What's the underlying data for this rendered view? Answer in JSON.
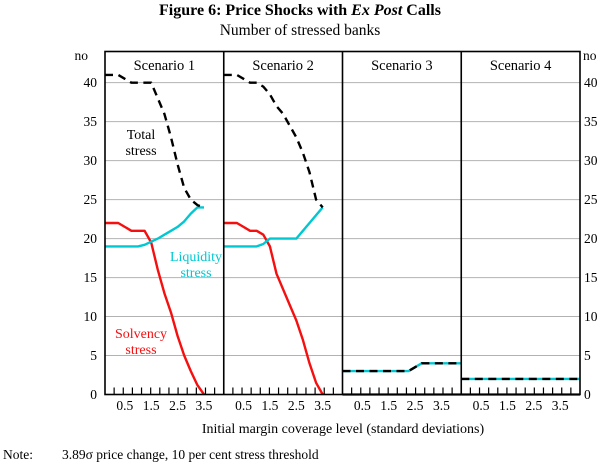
{
  "figure": {
    "title_prefix": "Figure 6: Price Shocks with ",
    "title_italic": "Ex Post",
    "title_suffix": " Calls",
    "subtitle": "Number of stressed banks",
    "axis_unit": "no",
    "xlabel": "Initial margin coverage level (standard deviations)",
    "note_label": "Note:",
    "note_text": "3.89σ price change, 10 per cent stress threshold"
  },
  "colors": {
    "total": "#000000",
    "liquidity": "#00c8d2",
    "solvency": "#f50f0f",
    "grid": "#b2b2b2",
    "frame": "#000000"
  },
  "chart_data": {
    "type": "line",
    "title": "Figure 6: Price Shocks with Ex Post Calls",
    "subtitle": "Number of stressed banks",
    "ylabel": "no",
    "xlabel": "Initial margin coverage level (standard deviations)",
    "note": "3.89σ price change, 10 per cent stress threshold",
    "x": [
      0.25,
      0.5,
      0.75,
      1.0,
      1.25,
      1.5,
      1.75,
      2.0,
      2.25,
      2.5,
      2.75,
      3.0,
      3.25,
      3.5
    ],
    "xlim": [
      -0.25,
      4.25
    ],
    "ylim": [
      0,
      44
    ],
    "yticks": [
      0,
      5,
      10,
      15,
      20,
      25,
      30,
      35,
      40
    ],
    "xtick_labels": [
      "0.5",
      "1.5",
      "2.5",
      "3.5"
    ],
    "xtick_values": [
      0.5,
      1.5,
      2.5,
      3.5
    ],
    "grid": "horizontal-only",
    "legend_position": "in-panel-text-labels",
    "series_text": {
      "total": [
        "Total",
        "stress"
      ],
      "liquidity": [
        "Liquidity",
        "stress"
      ],
      "solvency": [
        "Solvency",
        "stress"
      ]
    },
    "series_names": {
      "total": "Total stress",
      "liquidity": "Liquidity stress",
      "solvency": "Solvency stress"
    },
    "panels": [
      {
        "label": "Scenario 1",
        "extend_left": true,
        "extend_right": false,
        "series": {
          "total": [
            41,
            40.5,
            40,
            40,
            40,
            40,
            38,
            36,
            33,
            29.5,
            26.5,
            25,
            24.3,
            24
          ],
          "liquidity": [
            19,
            19,
            19,
            19,
            19.2,
            19.6,
            20,
            20.5,
            21,
            21.5,
            22.2,
            23.2,
            24,
            24
          ],
          "solvency": [
            22,
            21.5,
            21,
            21,
            21,
            19.5,
            16,
            13,
            10.5,
            7.5,
            5,
            3,
            1.2,
            0
          ]
        }
      },
      {
        "label": "Scenario 2",
        "extend_left": true,
        "extend_right": false,
        "series": {
          "total": [
            41,
            40.5,
            40,
            40,
            39.5,
            38.5,
            37,
            36,
            34.5,
            33,
            31,
            28.5,
            25,
            24
          ],
          "liquidity": [
            19,
            19,
            19,
            19,
            19.3,
            20,
            20,
            20,
            20,
            20,
            21,
            22,
            23,
            24
          ],
          "solvency": [
            22,
            21.5,
            21,
            21,
            20.5,
            19,
            15.5,
            13.5,
            11.5,
            9.5,
            7,
            4,
            1.5,
            0
          ]
        }
      },
      {
        "label": "Scenario 3",
        "extend_left": true,
        "extend_right": true,
        "series": {
          "total": [
            3,
            3,
            3,
            3,
            3,
            3,
            3,
            3,
            3,
            3.5,
            4,
            4,
            4,
            4
          ],
          "liquidity": [
            3,
            3,
            3,
            3,
            3,
            3,
            3,
            3,
            3,
            3.5,
            4,
            4,
            4,
            4
          ],
          "solvency": [
            0,
            0,
            0,
            0,
            0,
            0,
            0,
            0,
            0,
            0,
            0,
            0,
            0,
            0
          ]
        }
      },
      {
        "label": "Scenario 4",
        "extend_left": true,
        "extend_right": true,
        "series": {
          "total": [
            2,
            2,
            2,
            2,
            2,
            2,
            2,
            2,
            2,
            2,
            2,
            2,
            2,
            2
          ],
          "liquidity": [
            2,
            2,
            2,
            2,
            2,
            2,
            2,
            2,
            2,
            2,
            2,
            2,
            2,
            2
          ],
          "solvency": [
            0,
            0,
            0,
            0,
            0,
            0,
            0,
            0,
            0,
            0,
            0,
            0,
            0,
            0
          ]
        }
      }
    ]
  }
}
